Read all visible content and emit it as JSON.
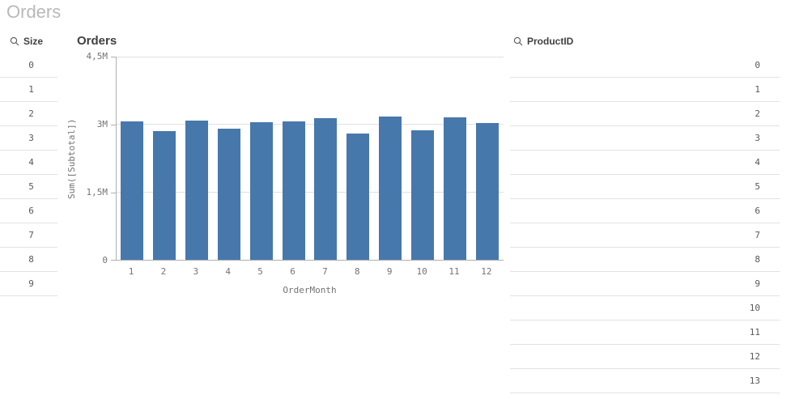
{
  "page": {
    "title": "Orders"
  },
  "size_listbox": {
    "title": "Size",
    "icon": "search-icon",
    "values": [
      "0",
      "1",
      "2",
      "3",
      "4",
      "5",
      "6",
      "7",
      "8",
      "9"
    ]
  },
  "product_listbox": {
    "title": "ProductID",
    "icon": "search-icon",
    "values": [
      "0",
      "1",
      "2",
      "3",
      "4",
      "5",
      "6",
      "7",
      "8",
      "9",
      "10",
      "11",
      "12",
      "13"
    ]
  },
  "chart": {
    "title": "Orders",
    "chart_data": {
      "type": "bar",
      "title": "Orders",
      "xlabel": "OrderMonth",
      "ylabel": "Sum([Subtotal])",
      "categories": [
        "1",
        "2",
        "3",
        "4",
        "5",
        "6",
        "7",
        "8",
        "9",
        "10",
        "11",
        "12"
      ],
      "values_millions": [
        3.05,
        2.84,
        3.07,
        2.9,
        3.03,
        3.05,
        3.12,
        2.78,
        3.16,
        2.86,
        3.14,
        3.02
      ],
      "ylim_millions": [
        0,
        4.5
      ],
      "yticks": [
        {
          "value_millions": 0,
          "label": "0"
        },
        {
          "value_millions": 1.5,
          "label": "1,5M"
        },
        {
          "value_millions": 3,
          "label": "3M"
        },
        {
          "value_millions": 4.5,
          "label": "4,5M"
        }
      ],
      "grid": true,
      "legend": false
    }
  },
  "colors": {
    "bar": "#4778ab",
    "sheet_title_text": "#b9b9b9",
    "header_text": "#404040",
    "value_text": "#595959",
    "axis_text": "#737373",
    "grid_line": "#e0e0e0",
    "axis_line": "#b0b0b0",
    "row_divider": "#e2e2e2"
  }
}
